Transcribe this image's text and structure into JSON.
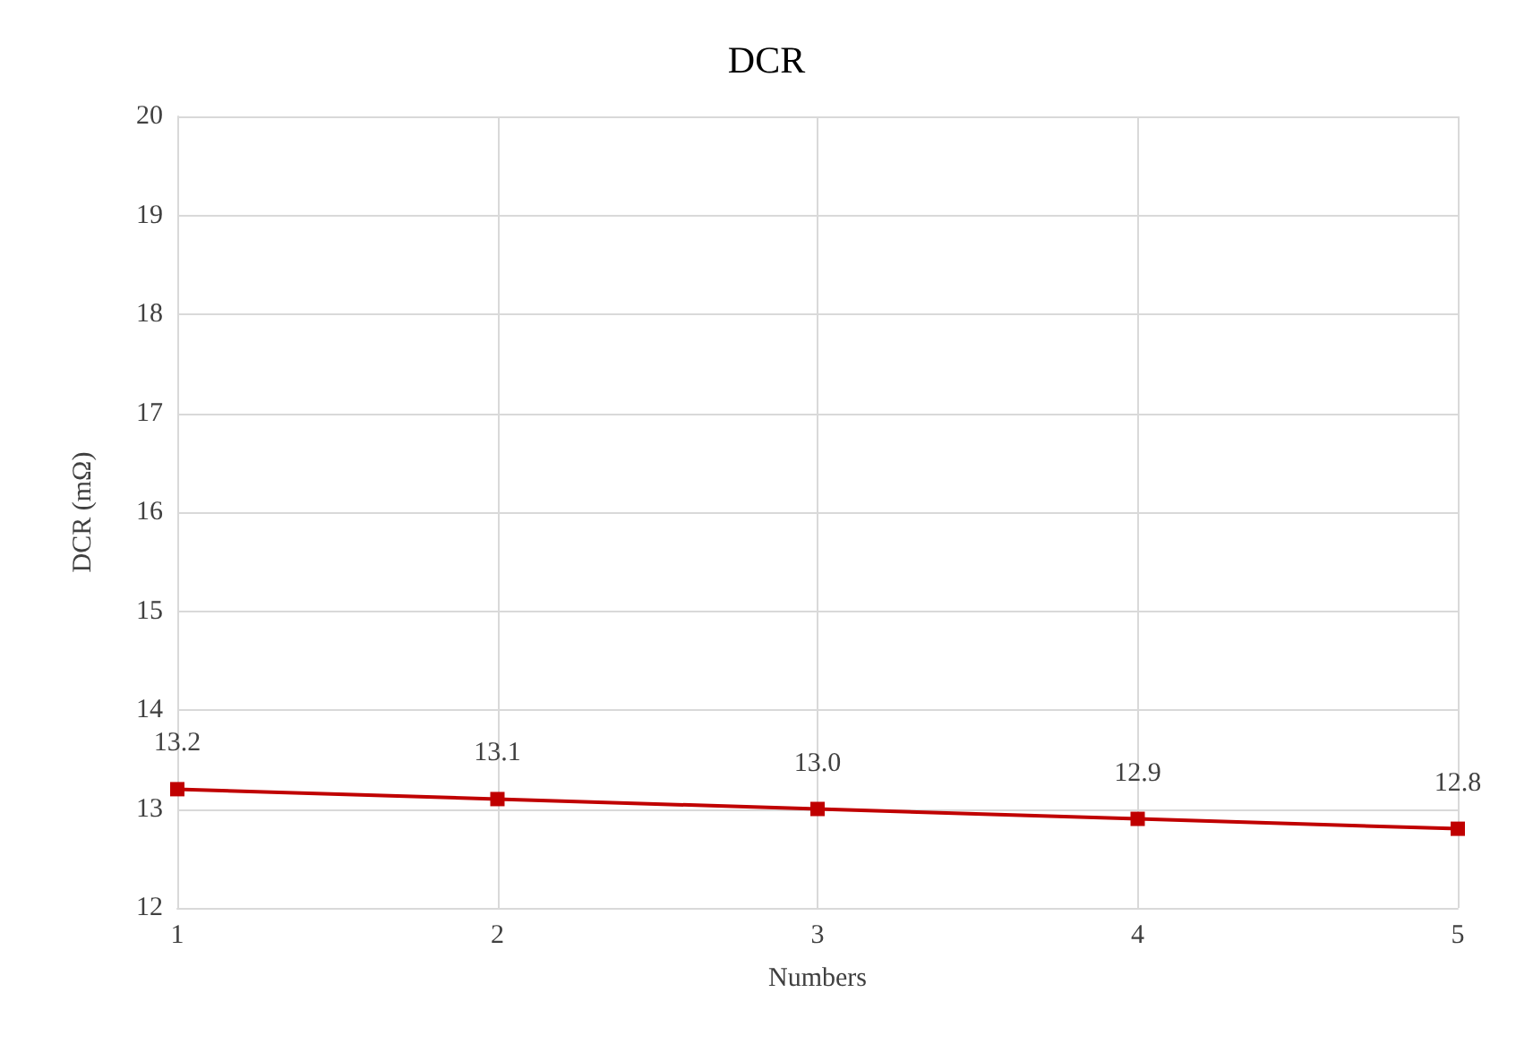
{
  "chart_data": {
    "type": "line",
    "title": "DCR",
    "xlabel": "Numbers",
    "ylabel": "DCR (mΩ)",
    "x": [
      1,
      2,
      3,
      4,
      5
    ],
    "series": [
      {
        "color": "#c00000",
        "values": [
          13.2,
          13.1,
          13.0,
          12.9,
          12.8
        ],
        "value_labels": [
          "13.2",
          "13.1",
          "13.0",
          "12.9",
          "12.8"
        ]
      }
    ],
    "xlim": [
      1,
      5
    ],
    "xticks": [
      1,
      2,
      3,
      4,
      5
    ],
    "ylim": [
      12,
      20
    ],
    "yticks": [
      12,
      13,
      14,
      15,
      16,
      17,
      18,
      19,
      20
    ],
    "grid": true,
    "marker": "square",
    "line_style": "solid"
  }
}
